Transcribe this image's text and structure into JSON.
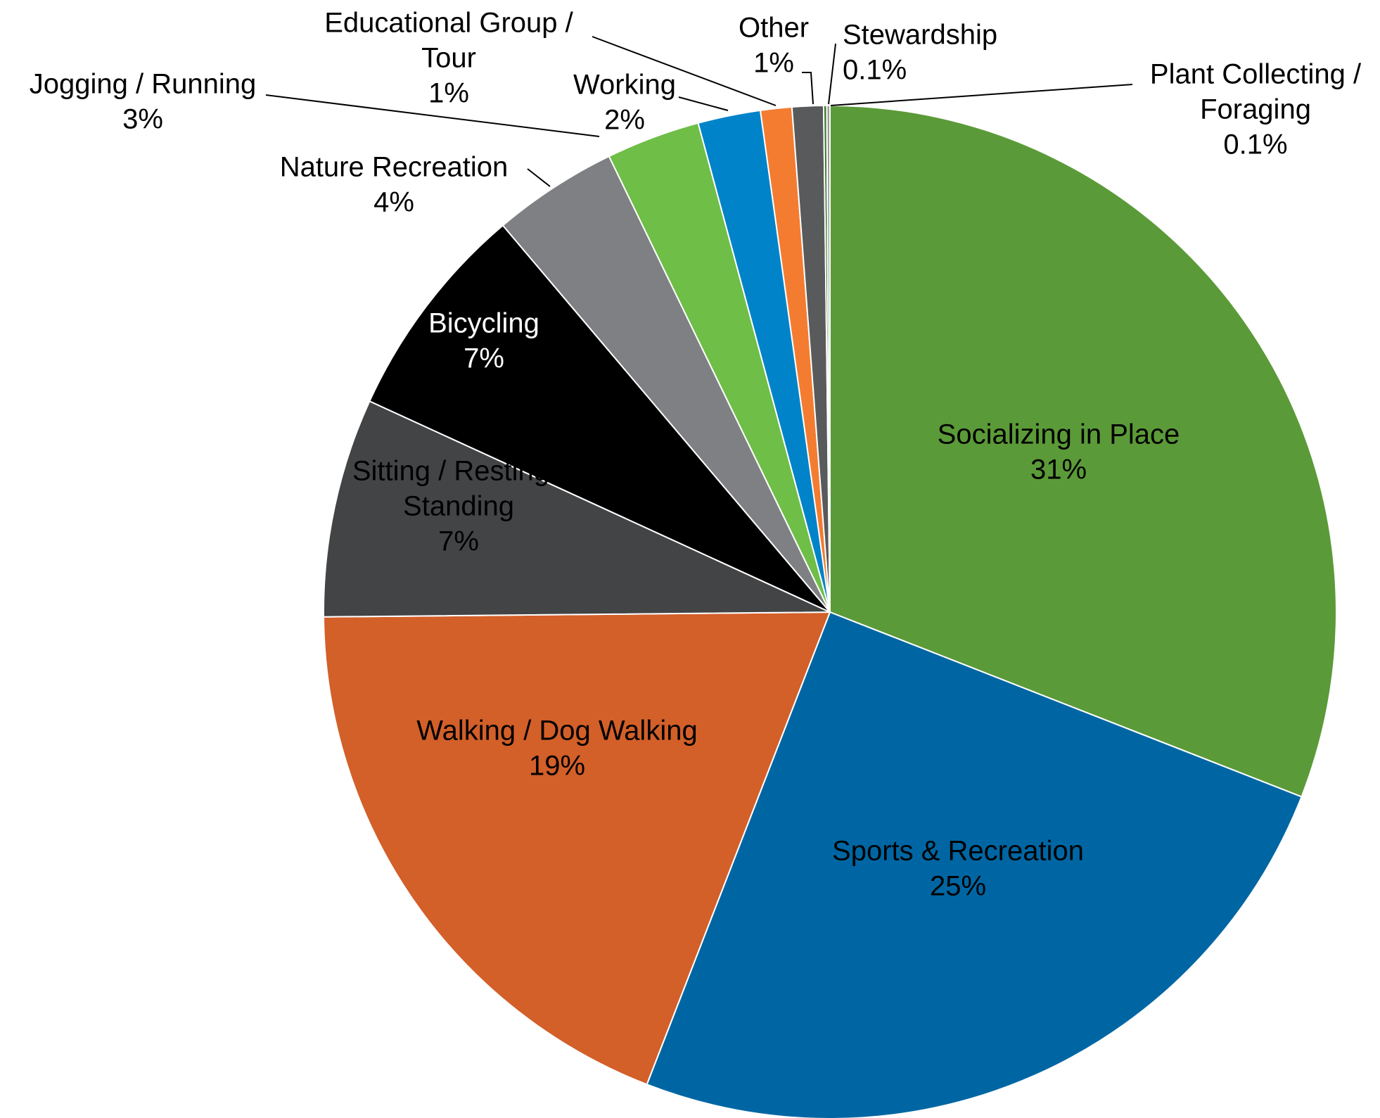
{
  "chart_data": {
    "type": "pie",
    "start_angle_deg": 0,
    "direction": "clockwise",
    "slices": [
      {
        "name": "Socializing in Place",
        "value": 31,
        "pct_label": "31%",
        "color": "#5b9a38"
      },
      {
        "name": "Sports & Recreation",
        "value": 25,
        "pct_label": "25%",
        "color": "#0066a3"
      },
      {
        "name": "Walking / Dog Walking",
        "value": 19,
        "pct_label": "19%",
        "color": "#d35f29"
      },
      {
        "name": "Sitting / Resting / Standing",
        "value": 7,
        "pct_label": "7%",
        "color": "#434446"
      },
      {
        "name": "Bicycling",
        "value": 7,
        "pct_label": "7%",
        "color": "#000000"
      },
      {
        "name": "Nature Recreation",
        "value": 4,
        "pct_label": "4%",
        "color": "#7f8083"
      },
      {
        "name": "Jogging / Running",
        "value": 3,
        "pct_label": "3%",
        "color": "#6ebe47"
      },
      {
        "name": "Working",
        "value": 2,
        "pct_label": "2%",
        "color": "#0083c9"
      },
      {
        "name": "Educational Group / Tour",
        "value": 1,
        "pct_label": "1%",
        "color": "#f47c31"
      },
      {
        "name": "Other",
        "value": 1,
        "pct_label": "1%",
        "color": "#585a5c"
      },
      {
        "name": "Stewardship",
        "value": 0.1,
        "pct_label": "0.1%",
        "color": "#3a7a2a"
      },
      {
        "name": "Plant Collecting / Foraging",
        "value": 0.1,
        "pct_label": "0.1%",
        "color": "#9a9a9a"
      }
    ],
    "inner_labels": [
      {
        "lines": [
          "Socializing in Place",
          "31%"
        ],
        "color": "#000000"
      },
      {
        "lines": [
          "Sports & Recreation",
          "25%"
        ],
        "color": "#000000"
      },
      {
        "lines": [
          "Walking / Dog Walking",
          "19%"
        ],
        "color": "#000000"
      },
      {
        "lines": [
          "Sitting / Resting /",
          "Standing",
          "7%"
        ],
        "color": "#000000"
      },
      {
        "lines": [
          "Bicycling",
          "7%"
        ],
        "color": "#ffffff"
      }
    ],
    "outer_labels": [
      {
        "slice": "Nature Recreation",
        "lines": [
          "Nature Recreation",
          "4%"
        ]
      },
      {
        "slice": "Jogging / Running",
        "lines": [
          "Jogging / Running",
          "3%"
        ]
      },
      {
        "slice": "Working",
        "lines": [
          "Working",
          "2%"
        ]
      },
      {
        "slice": "Educational Group / Tour",
        "lines": [
          "Educational Group /",
          "Tour",
          "1%"
        ]
      },
      {
        "slice": "Other",
        "lines": [
          "Other",
          "1%"
        ]
      },
      {
        "slice": "Stewardship",
        "lines": [
          "Stewardship",
          "0.1%"
        ]
      },
      {
        "slice": "Plant Collecting / Foraging",
        "lines": [
          "Plant Collecting /",
          "Foraging",
          "0.1%"
        ]
      }
    ]
  }
}
